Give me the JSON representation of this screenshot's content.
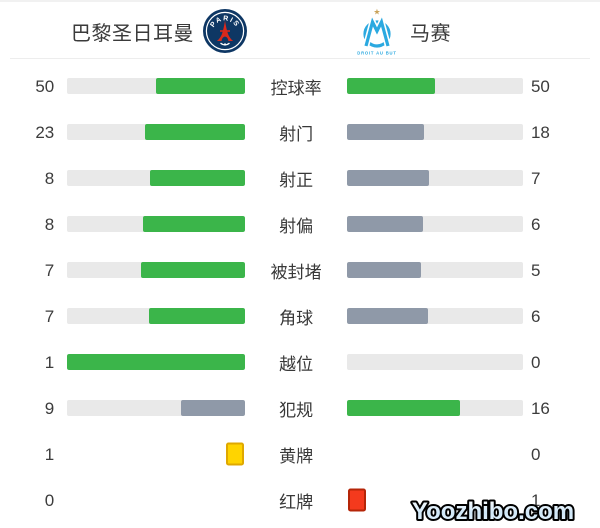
{
  "header": {
    "home_team": "巴黎圣日耳曼",
    "away_team": "马赛",
    "psg_crest_text": "PARIS",
    "om_crest_text": "DROIT AU BUT"
  },
  "watermark": "Yoozhibo.com",
  "colors": {
    "bar_green": "#3BB54A",
    "bar_gray": "#8F99A8",
    "bar_track": "#E9E9E9",
    "yellow_card": "#FFD400",
    "yellow_card_border": "#DFA800",
    "red_card": "#F43A1D",
    "red_card_border": "#B52508",
    "psg_navy": "#0E3764",
    "psg_red": "#DA291C",
    "om_blue": "#2BA9E0",
    "star_gold": "#C9A35B",
    "text": "#3C3C3C"
  },
  "stats": [
    {
      "label": "控球率",
      "home": 50,
      "away": 50,
      "display": "bar"
    },
    {
      "label": "射门",
      "home": 23,
      "away": 18,
      "display": "bar"
    },
    {
      "label": "射正",
      "home": 8,
      "away": 7,
      "display": "bar"
    },
    {
      "label": "射偏",
      "home": 8,
      "away": 6,
      "display": "bar"
    },
    {
      "label": "被封堵",
      "home": 7,
      "away": 5,
      "display": "bar"
    },
    {
      "label": "角球",
      "home": 7,
      "away": 6,
      "display": "bar"
    },
    {
      "label": "越位",
      "home": 1,
      "away": 0,
      "display": "bar"
    },
    {
      "label": "犯规",
      "home": 9,
      "away": 16,
      "display": "bar"
    },
    {
      "label": "黄牌",
      "home": 1,
      "away": 0,
      "display": "card",
      "card_color": "yellow",
      "card_side": "home"
    },
    {
      "label": "红牌",
      "home": 0,
      "away": 1,
      "display": "card",
      "card_color": "red",
      "card_side": "away"
    }
  ],
  "chart_data": {
    "type": "bar",
    "orientation": "horizontal-mirrored-from-center",
    "categories": [
      "控球率",
      "射门",
      "射正",
      "射偏",
      "被封堵",
      "角球",
      "越位",
      "犯规",
      "黄牌",
      "红牌"
    ],
    "series": [
      {
        "name": "巴黎圣日耳曼",
        "values": [
          50,
          23,
          8,
          8,
          7,
          7,
          1,
          9,
          1,
          0
        ]
      },
      {
        "name": "马赛",
        "values": [
          50,
          18,
          7,
          6,
          5,
          6,
          0,
          16,
          0,
          1
        ]
      }
    ],
    "legend_position": "top (team names with crests)",
    "grid": false,
    "notes": "Each bar fills value/(home+away) of its track from the center outward; the higher side is green #3BB54A, the lower side gray-blue #8F99A8, equal values both green; 黄牌/红牌 rows show card icons instead of bars (yellow card on home side, red card on away side)."
  }
}
